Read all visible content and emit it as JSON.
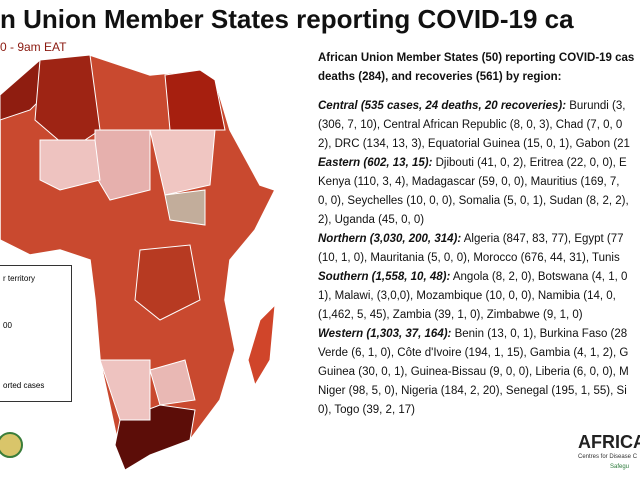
{
  "header": {
    "title": "n Union Member States reporting COVID-19 ca",
    "subtitle": "0 - 9am EAT"
  },
  "summary": [
    "African Union Member States (50) reporting COVID-19 cas",
    "deaths (284), and recoveries (561) by region:"
  ],
  "lines": [
    {
      "lead": "Central (535 cases, 24 deaths, 20 recoveries):",
      "text": " Burundi (3,"
    },
    {
      "text": "(306, 7, 10), Central African Republic (8, 0, 3), Chad (7, 0, 0"
    },
    {
      "text": "2), DRC (134, 13, 3), Equatorial Guinea (15, 0, 1), Gabon (21"
    },
    {
      "lead": "Eastern (602, 13, 15):",
      "text": " Djibouti (41, 0, 2), Eritrea (22, 0, 0), E"
    },
    {
      "text": "Kenya (110, 3, 4), Madagascar (59, 0, 0), Mauritius (169, 7,"
    },
    {
      "text": "0, 0), Seychelles (10, 0, 0), Somalia (5, 0, 1), Sudan (8, 2, 2),"
    },
    {
      "text": "2), Uganda (45, 0, 0)"
    },
    {
      "lead": "Northern (3,030, 200, 314):",
      "text": " Algeria (847, 83, 77), Egypt (77"
    },
    {
      "text": "(10, 1, 0), Mauritania (5, 0, 0), Morocco (676, 44, 31), Tunis"
    },
    {
      "lead": "Southern (1,558, 10, 48):",
      "text": " Angola (8, 2, 0), Botswana (4, 1, 0"
    },
    {
      "text": "1), Malawi, (3,0,0), Mozambique (10, 0, 0), Namibia (14, 0,"
    },
    {
      "text": "(1,462, 5, 45), Zambia (39, 1, 0), Zimbabwe (9, 1, 0)"
    },
    {
      "lead": "Western (1,303, 37, 164):",
      "text": " Benin (13, 0, 1), Burkina Faso (28"
    },
    {
      "text": "Verde (6, 1, 0), Côte d'Ivoire (194, 1, 15), Gambia (4, 1, 2), G"
    },
    {
      "text": "Guinea (30, 0, 1), Guinea-Bissau (9, 0, 0), Liberia (6, 0, 0), M"
    },
    {
      "text": "Niger (98, 5, 0), Nigeria (184, 2, 20), Senegal (195, 1, 55), Si"
    },
    {
      "text": "0), Togo (39, 2, 17)"
    }
  ],
  "legend": [
    "r territory",
    "00",
    "orted cases"
  ],
  "logo": {
    "name": "AFRICA",
    "line1": "Centres for Disease C",
    "line2": "Safegu"
  }
}
